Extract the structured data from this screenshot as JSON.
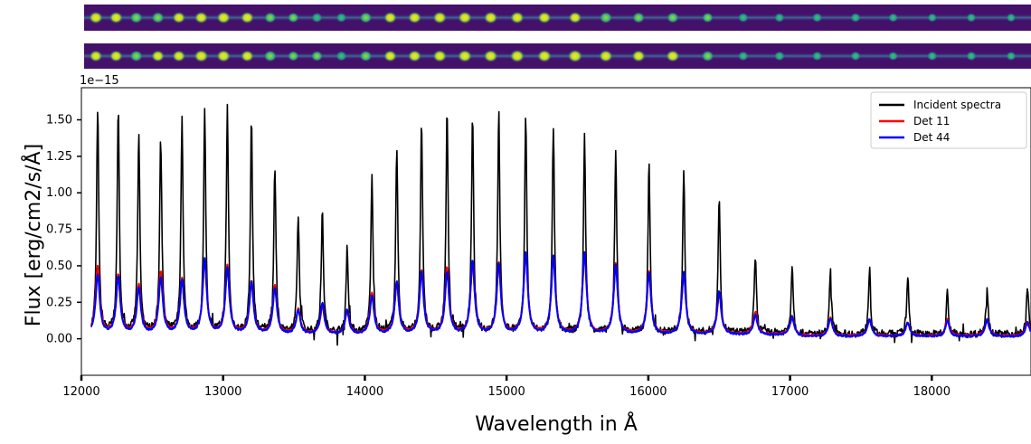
{
  "chart_data": {
    "type": "line",
    "xlabel": "Wavelength in Å",
    "ylabel": "Flux [erg/cm2/s/Å]",
    "y_multiplier": "1e−15",
    "xlim": [
      12000,
      18700
    ],
    "ylim": [
      -0.25,
      1.72
    ],
    "x_ticks": [
      {
        "value": 12000,
        "label": "12000"
      },
      {
        "value": 13000,
        "label": "13000"
      },
      {
        "value": 14000,
        "label": "14000"
      },
      {
        "value": 15000,
        "label": "15000"
      },
      {
        "value": 16000,
        "label": "16000"
      },
      {
        "value": 17000,
        "label": "17000"
      },
      {
        "value": 18000,
        "label": "18000"
      }
    ],
    "y_ticks": [
      {
        "value": 0.0,
        "label": "0.00"
      },
      {
        "value": 0.25,
        "label": "0.25"
      },
      {
        "value": 0.5,
        "label": "0.50"
      },
      {
        "value": 0.75,
        "label": "0.75"
      },
      {
        "value": 1.0,
        "label": "1.00"
      },
      {
        "value": 1.25,
        "label": "1.25"
      },
      {
        "value": 1.5,
        "label": "1.50"
      }
    ],
    "legend_position": "top-right",
    "grid": false,
    "series": [
      {
        "name": "Incident spectra",
        "color": "#000000",
        "peak_wavelengths": [
          12115,
          12260,
          12405,
          12560,
          12710,
          12870,
          13030,
          13200,
          13365,
          13530,
          13700,
          13875,
          14050,
          14225,
          14400,
          14580,
          14760,
          14945,
          15135,
          15330,
          15550,
          15770,
          16005,
          16250,
          16500,
          16755,
          17015,
          17285,
          17560,
          17830,
          18110,
          18390,
          18675
        ],
        "peak_values": [
          1.58,
          1.57,
          1.38,
          1.42,
          1.5,
          1.54,
          1.58,
          1.49,
          1.17,
          0.84,
          0.87,
          0.62,
          1.1,
          1.3,
          1.48,
          1.55,
          1.52,
          1.55,
          1.53,
          1.45,
          1.38,
          1.3,
          1.2,
          1.16,
          0.96,
          0.56,
          0.51,
          0.47,
          0.46,
          0.42,
          0.33,
          0.38,
          0.38
        ]
      },
      {
        "name": "Det 11",
        "color": "#ff0000",
        "peak_wavelengths": [
          12115,
          12260,
          12405,
          12560,
          12710,
          12870,
          13030,
          13200,
          13365,
          13530,
          13700,
          13875,
          14050,
          14225,
          14400,
          14580,
          14760,
          14945,
          15135,
          15330,
          15550,
          15770,
          16005,
          16250,
          16500,
          16755,
          17015,
          17285,
          17560,
          17830,
          18110,
          18390,
          18675
        ],
        "peak_values": [
          0.49,
          0.43,
          0.36,
          0.45,
          0.4,
          0.53,
          0.5,
          0.39,
          0.36,
          0.2,
          0.22,
          0.18,
          0.31,
          0.38,
          0.46,
          0.48,
          0.52,
          0.52,
          0.58,
          0.56,
          0.58,
          0.51,
          0.46,
          0.44,
          0.31,
          0.18,
          0.16,
          0.15,
          0.14,
          0.12,
          0.14,
          0.14,
          0.13
        ]
      },
      {
        "name": "Det 44",
        "color": "#0000ff",
        "peak_wavelengths": [
          12115,
          12260,
          12405,
          12560,
          12710,
          12870,
          13030,
          13200,
          13365,
          13530,
          13700,
          13875,
          14050,
          14225,
          14400,
          14580,
          14760,
          14945,
          15135,
          15330,
          15550,
          15770,
          16005,
          16250,
          16500,
          16755,
          17015,
          17285,
          17560,
          17830,
          18110,
          18390,
          18675
        ],
        "peak_values": [
          0.44,
          0.42,
          0.34,
          0.41,
          0.39,
          0.54,
          0.48,
          0.38,
          0.34,
          0.19,
          0.24,
          0.19,
          0.29,
          0.38,
          0.45,
          0.45,
          0.53,
          0.51,
          0.59,
          0.56,
          0.59,
          0.5,
          0.45,
          0.45,
          0.32,
          0.16,
          0.16,
          0.15,
          0.14,
          0.12,
          0.13,
          0.14,
          0.12
        ]
      }
    ]
  },
  "strips": {
    "colors": {
      "background": "#44116a",
      "trace": "#3a6f9a",
      "spot_bright": "#fde725",
      "spot_mid": "#5ec962",
      "spot_dim": "#21918c"
    },
    "top": {
      "spot_brightness": [
        0.9,
        0.85,
        0.75,
        0.75,
        0.8,
        0.85,
        0.9,
        0.85,
        0.65,
        0.55,
        0.5,
        0.45,
        0.7,
        0.8,
        0.85,
        0.9,
        0.9,
        0.9,
        0.9,
        0.85,
        0.8,
        0.75,
        0.7,
        0.65,
        0.55,
        0.45,
        0.4,
        0.4,
        0.4,
        0.35,
        0.3,
        0.35,
        0.3
      ]
    },
    "bottom": {
      "spot_brightness": [
        0.8,
        0.8,
        0.75,
        0.8,
        0.8,
        0.95,
        0.9,
        0.8,
        0.75,
        0.55,
        0.6,
        0.5,
        0.7,
        0.8,
        0.85,
        0.9,
        0.95,
        0.95,
        1.0,
        0.95,
        1.0,
        0.9,
        0.85,
        0.85,
        0.7,
        0.45,
        0.45,
        0.4,
        0.4,
        0.35,
        0.4,
        0.4,
        0.35
      ]
    }
  }
}
